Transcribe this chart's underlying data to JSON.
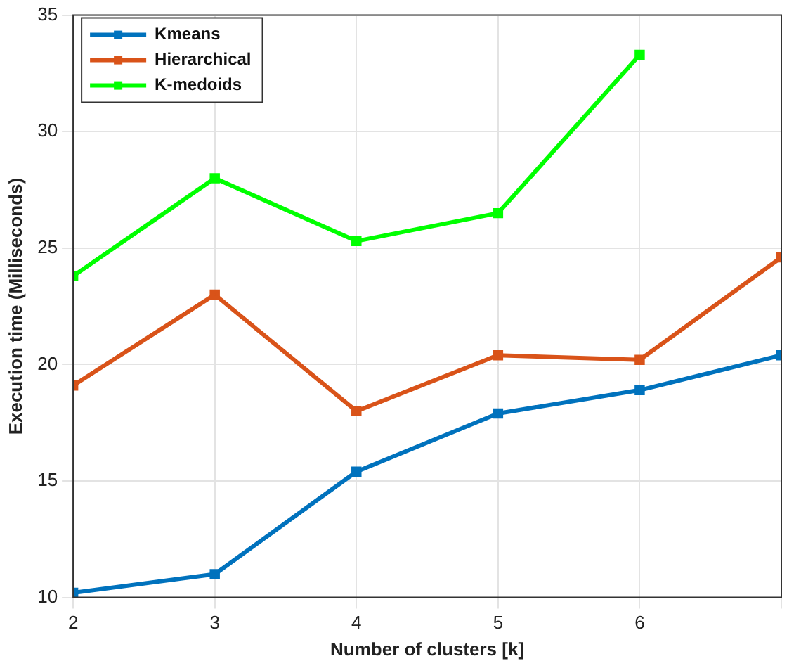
{
  "chart_data": {
    "type": "line",
    "xlabel": "Number of clusters [k]",
    "ylabel": "Execution time (Milliseconds)",
    "x": [
      2,
      3,
      4,
      5,
      6,
      7
    ],
    "series": [
      {
        "name": "Kmeans",
        "color": "#0072bd",
        "values": [
          10.2,
          11.0,
          15.4,
          17.9,
          18.9,
          20.4
        ]
      },
      {
        "name": "Hierarchical",
        "color": "#d95319",
        "values": [
          19.1,
          23.0,
          18.0,
          20.4,
          20.2,
          24.6
        ]
      },
      {
        "name": "K-medoids",
        "color": "#00ff00",
        "values": [
          23.8,
          28.0,
          25.3,
          26.5,
          33.3,
          null
        ]
      }
    ],
    "xlim": [
      2,
      7
    ],
    "xticks": [
      2,
      3,
      4,
      5,
      6,
      {
        "value": 7,
        "label": null
      }
    ],
    "ylim": [
      10,
      35
    ],
    "yticks": [
      10,
      15,
      20,
      25,
      30,
      35
    ],
    "grid": true,
    "legend": "top left",
    "marker": "square",
    "line_style": "solid"
  }
}
